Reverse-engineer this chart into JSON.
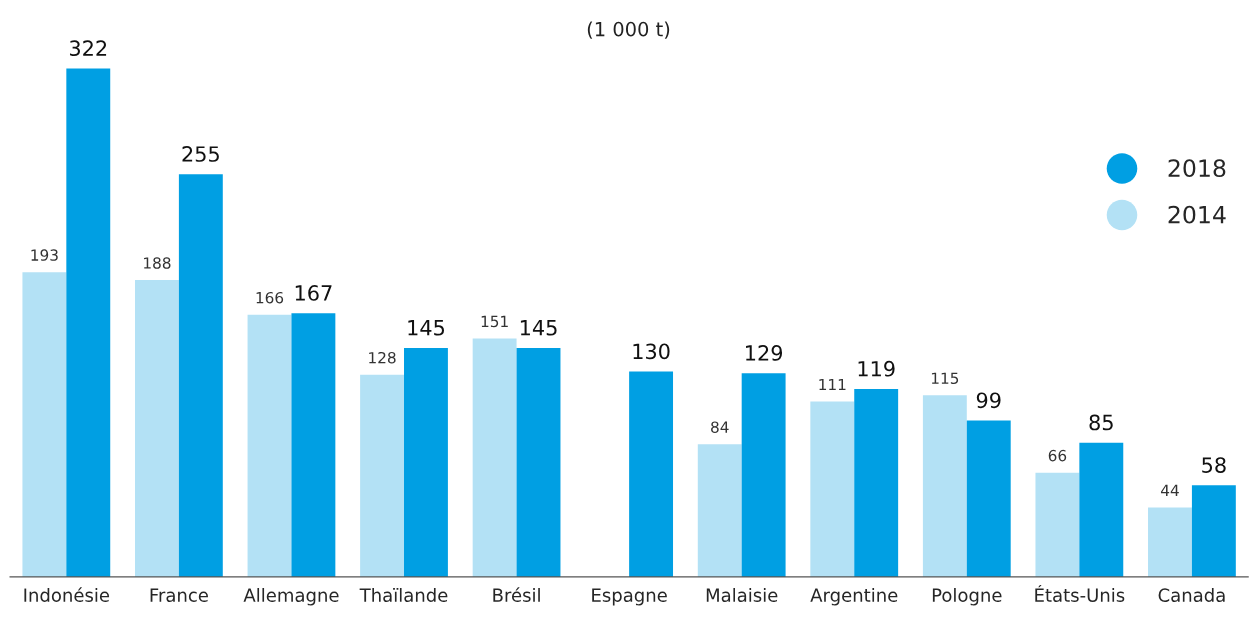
{
  "chart_data": {
    "type": "bar",
    "title": "(1 000 t)",
    "categories": [
      "Indonésie",
      "France",
      "Allemagne",
      "Thaïlande",
      "Brésil",
      "Espagne",
      "Malaisie",
      "Argentine",
      "Pologne",
      "États-Unis",
      "Canada"
    ],
    "series": [
      {
        "name": "2014",
        "color": "#b3e1f5",
        "values": [
          193,
          188,
          166,
          128,
          151,
          null,
          84,
          111,
          115,
          66,
          44
        ]
      },
      {
        "name": "2018",
        "color": "#009fe3",
        "values": [
          322,
          255,
          167,
          145,
          145,
          130,
          129,
          119,
          99,
          85,
          58
        ]
      }
    ],
    "data_labels": true,
    "legend": "top right",
    "grid": false
  }
}
